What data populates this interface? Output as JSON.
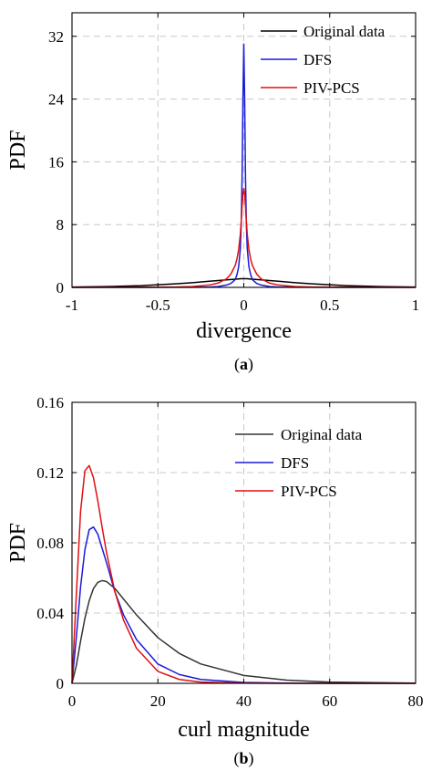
{
  "chart_data": [
    {
      "type": "line",
      "panel_label": "(a)",
      "xlabel": "divergence",
      "ylabel": "PDF",
      "xlim": [
        -1,
        1
      ],
      "ylim": [
        0,
        35
      ],
      "xticks": [
        -1,
        -0.5,
        0,
        0.5,
        1
      ],
      "xtick_labels": [
        "-1",
        "-0.5",
        "0",
        "0.5",
        "1"
      ],
      "yticks": [
        0,
        8,
        16,
        24,
        32
      ],
      "ytick_labels": [
        "0",
        "8",
        "16",
        "24",
        "32"
      ],
      "grid": true,
      "legend_position": "top-right",
      "x": [
        -1,
        -0.8,
        -0.6,
        -0.4,
        -0.3,
        -0.2,
        -0.15,
        -0.1,
        -0.075,
        -0.05,
        -0.04,
        -0.03,
        -0.02,
        -0.015,
        -0.01,
        -0.005,
        0,
        0.005,
        0.01,
        0.015,
        0.02,
        0.03,
        0.04,
        0.05,
        0.075,
        0.1,
        0.15,
        0.2,
        0.3,
        0.4,
        0.6,
        0.8,
        1
      ],
      "series": [
        {
          "name": "Original data",
          "color": "#000000",
          "values": [
            0.04,
            0.1,
            0.22,
            0.45,
            0.6,
            0.78,
            0.87,
            0.96,
            1.0,
            1.04,
            1.06,
            1.08,
            1.1,
            1.1,
            1.1,
            1.1,
            1.1,
            1.1,
            1.1,
            1.1,
            1.1,
            1.08,
            1.06,
            1.04,
            1.0,
            0.96,
            0.87,
            0.78,
            0.6,
            0.45,
            0.22,
            0.1,
            0.04
          ]
        },
        {
          "name": "DFS",
          "color": "#1a1adc",
          "values": [
            0,
            0,
            0,
            0.01,
            0.02,
            0.05,
            0.1,
            0.3,
            0.5,
            1.0,
            1.6,
            2.6,
            5.0,
            8.0,
            14.0,
            24.0,
            31.0,
            24.0,
            14.0,
            8.0,
            5.0,
            2.6,
            1.6,
            1.0,
            0.5,
            0.3,
            0.1,
            0.05,
            0.02,
            0.01,
            0,
            0,
            0
          ]
        },
        {
          "name": "PIV-PCS",
          "color": "#e01010",
          "values": [
            0,
            0.01,
            0.02,
            0.05,
            0.1,
            0.3,
            0.55,
            1.1,
            1.7,
            2.8,
            3.6,
            4.8,
            6.8,
            8.4,
            10.3,
            11.9,
            12.6,
            11.9,
            10.3,
            8.4,
            6.8,
            4.8,
            3.6,
            2.8,
            1.7,
            1.1,
            0.55,
            0.3,
            0.1,
            0.05,
            0.02,
            0.01,
            0
          ]
        }
      ]
    },
    {
      "type": "line",
      "panel_label": "(b)",
      "xlabel": "curl magnitude",
      "ylabel": "PDF",
      "xlim": [
        0,
        80
      ],
      "ylim": [
        0,
        0.16
      ],
      "xticks": [
        0,
        20,
        40,
        60,
        80
      ],
      "xtick_labels": [
        "0",
        "20",
        "40",
        "60",
        "80"
      ],
      "yticks": [
        0,
        0.04,
        0.08,
        0.12,
        0.16
      ],
      "ytick_labels": [
        "0",
        "0.04",
        "0.08",
        "0.12",
        "0.16"
      ],
      "grid": true,
      "legend_position": "top-right",
      "x": [
        0,
        1,
        2,
        3,
        4,
        5,
        6,
        7,
        8,
        10,
        12,
        15,
        20,
        25,
        30,
        40,
        50,
        60,
        80
      ],
      "series": [
        {
          "name": "Original data",
          "color": "#333333",
          "values": [
            0,
            0.01,
            0.024,
            0.037,
            0.047,
            0.054,
            0.0575,
            0.0585,
            0.058,
            0.054,
            0.048,
            0.039,
            0.026,
            0.017,
            0.011,
            0.0045,
            0.0018,
            0.0007,
            0.0001
          ]
        },
        {
          "name": "DFS",
          "color": "#1a1adc",
          "values": [
            0,
            0.026,
            0.055,
            0.076,
            0.0875,
            0.089,
            0.085,
            0.077,
            0.069,
            0.052,
            0.039,
            0.025,
            0.011,
            0.005,
            0.0022,
            0.0005,
            0.0001,
            0,
            0
          ]
        },
        {
          "name": "PIV-PCS",
          "color": "#e01010",
          "values": [
            0,
            0.05,
            0.098,
            0.121,
            0.124,
            0.117,
            0.104,
            0.089,
            0.075,
            0.052,
            0.036,
            0.02,
            0.0068,
            0.0022,
            0.0007,
            0.0001,
            0,
            0,
            0
          ]
        }
      ]
    }
  ]
}
